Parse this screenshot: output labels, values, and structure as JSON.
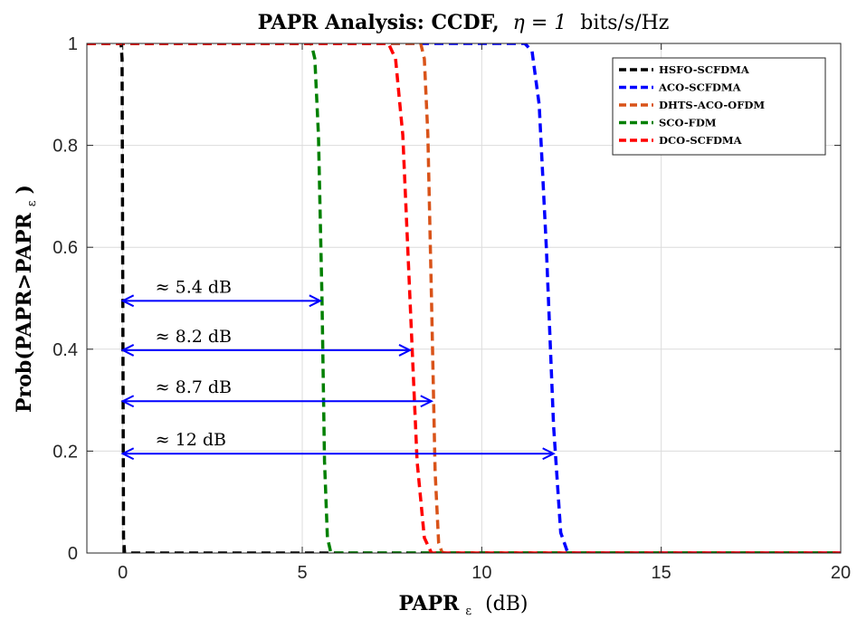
{
  "chart_data": {
    "type": "line",
    "title_bold": "PAPR Analysis: CCDF,",
    "title_math": "η = 1",
    "title_unit": "bits/s/Hz",
    "xlabel_main": "PAPR",
    "xlabel_sub": "ε",
    "xlabel_unit": "(dB)",
    "ylabel_main": "Prob(PAPR>PAPR",
    "ylabel_sub": "ε",
    "ylabel_close": ")",
    "xlim": [
      -1,
      20
    ],
    "ylim": [
      0,
      1
    ],
    "xticks": [
      0,
      5,
      10,
      15,
      20
    ],
    "yticks": [
      0,
      0.2,
      0.4,
      0.6,
      0.8,
      1
    ],
    "xtick_labels": [
      "0",
      "5",
      "10",
      "15",
      "20"
    ],
    "ytick_labels": [
      "0",
      "0.2",
      "0.4",
      "0.6",
      "0.8",
      "1"
    ],
    "grid": true,
    "legend_position": "top-right",
    "line_style": "dashed",
    "series": [
      {
        "name": "HSFO-SCFDMA",
        "color": "#000000",
        "x": [
          -1,
          -0.05,
          -0.02,
          0,
          0.02,
          0.05,
          20
        ],
        "y": [
          1,
          1,
          0.97,
          0.5,
          0.03,
          0,
          0
        ]
      },
      {
        "name": "ACO-SCFDMA",
        "color": "#0000ff",
        "x": [
          -1,
          11.2,
          11.4,
          11.6,
          11.8,
          12.0,
          12.2,
          12.4,
          20
        ],
        "y": [
          1,
          1,
          0.985,
          0.88,
          0.6,
          0.25,
          0.04,
          0,
          0
        ]
      },
      {
        "name": "DHTS-ACO-OFDM",
        "color": "#d95319",
        "x": [
          -1,
          8.3,
          8.4,
          8.5,
          8.6,
          8.7,
          8.8,
          8.9,
          20
        ],
        "y": [
          1,
          1,
          0.97,
          0.82,
          0.5,
          0.16,
          0.02,
          0,
          0
        ]
      },
      {
        "name": "SCO-FDM",
        "color": "#008000",
        "x": [
          -1,
          5.25,
          5.35,
          5.45,
          5.55,
          5.62,
          5.7,
          5.8,
          20
        ],
        "y": [
          1,
          1,
          0.97,
          0.82,
          0.5,
          0.18,
          0.03,
          0,
          0
        ]
      },
      {
        "name": "DCO-SCFDMA",
        "color": "#ff0000",
        "x": [
          -1,
          7.4,
          7.6,
          7.8,
          8.0,
          8.2,
          8.4,
          8.6,
          20
        ],
        "y": [
          1,
          1,
          0.97,
          0.82,
          0.5,
          0.18,
          0.03,
          0,
          0
        ]
      }
    ],
    "annotations": [
      {
        "text": "≈ 5.4 dB",
        "y": 0.495,
        "x_start": 0,
        "x_end": 5.5
      },
      {
        "text": "≈ 8.2 dB",
        "y": 0.398,
        "x_start": 0,
        "x_end": 8.0
      },
      {
        "text": "≈ 8.7 dB",
        "y": 0.298,
        "x_start": 0,
        "x_end": 8.6
      },
      {
        "text": "≈ 12 dB",
        "y": 0.195,
        "x_start": 0,
        "x_end": 12.0
      }
    ],
    "annotation_color": "#0000ff"
  }
}
